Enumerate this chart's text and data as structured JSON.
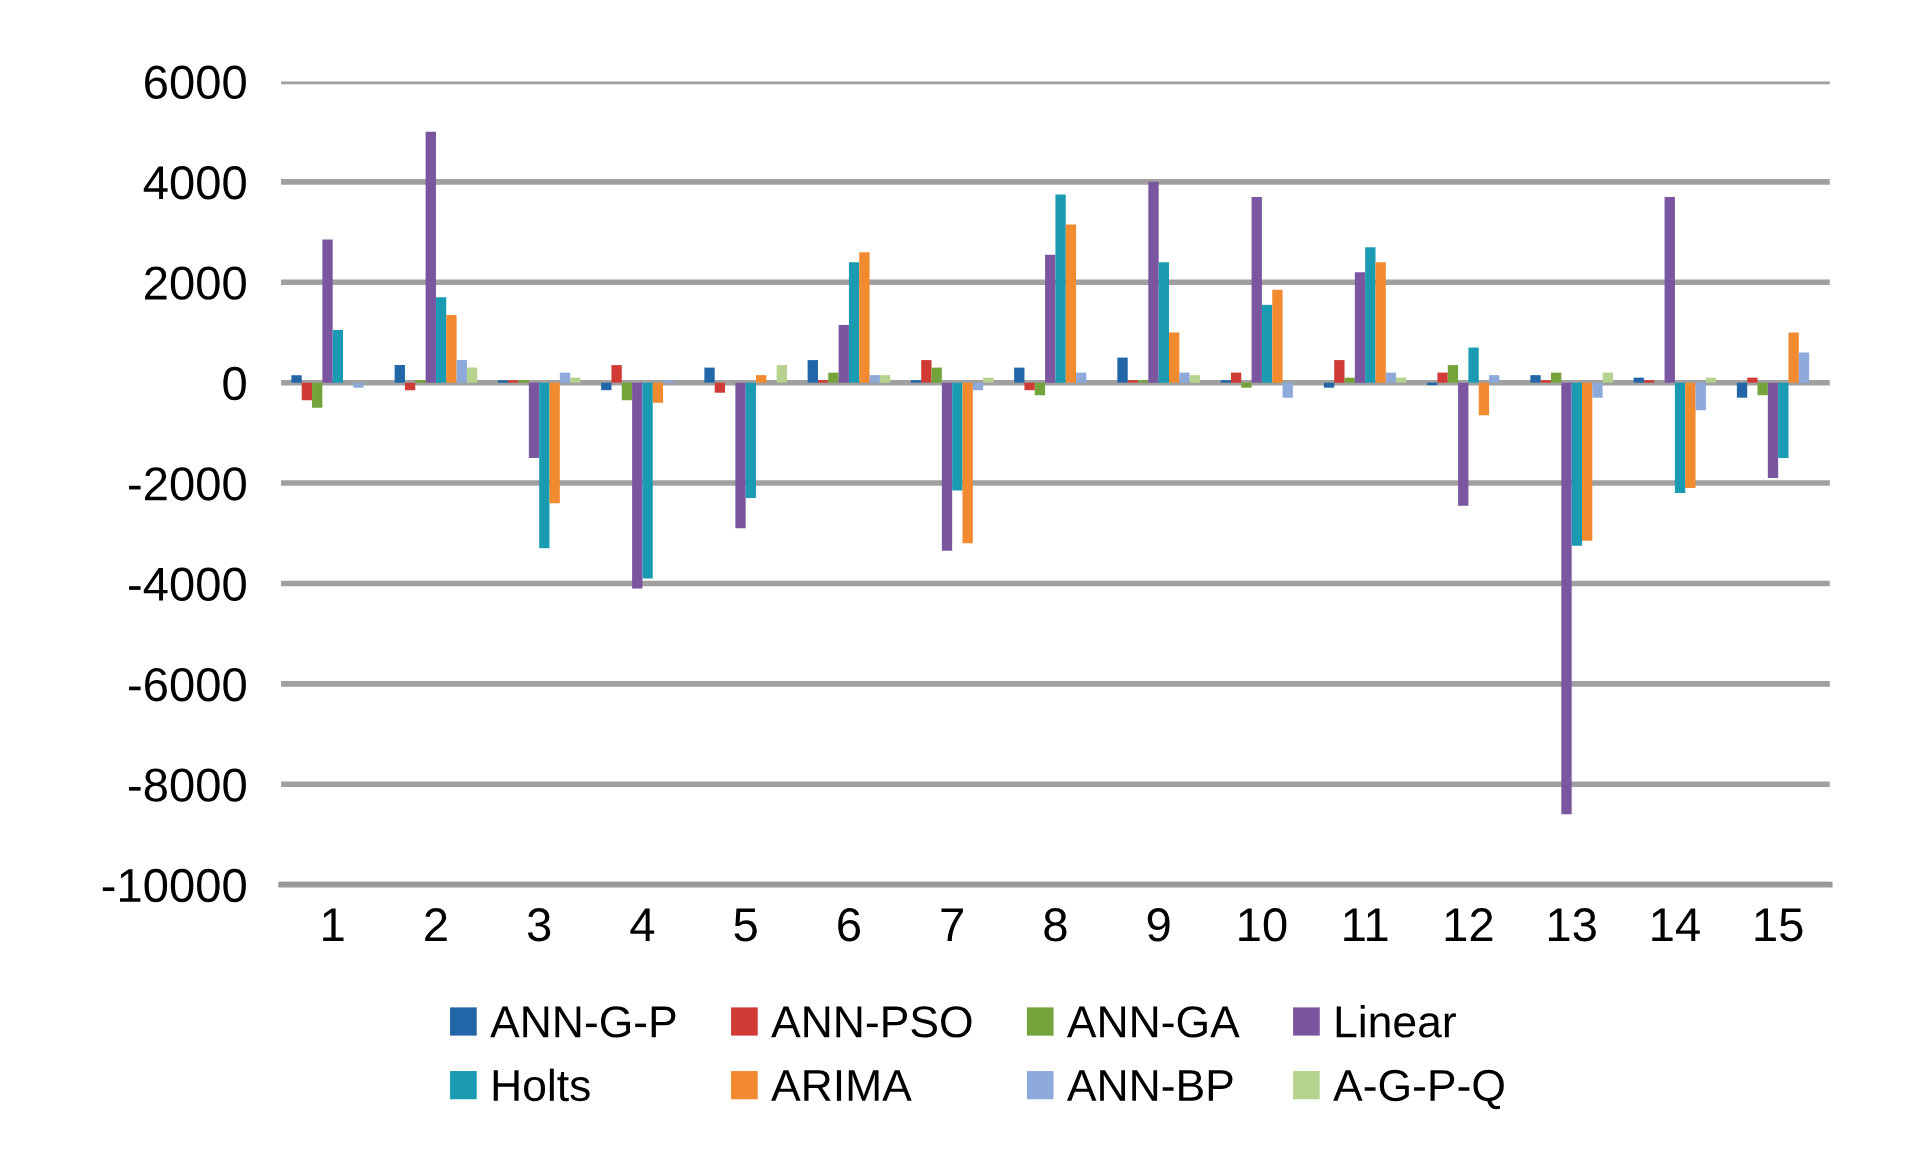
{
  "chart_data": {
    "type": "bar",
    "categories": [
      "1",
      "2",
      "3",
      "4",
      "5",
      "6",
      "7",
      "8",
      "9",
      "10",
      "11",
      "12",
      "13",
      "14",
      "15"
    ],
    "series": [
      {
        "name": "ANN-G-P",
        "color": "#2266a8",
        "values": [
          150,
          350,
          50,
          -150,
          300,
          450,
          50,
          300,
          500,
          50,
          -100,
          -50,
          150,
          100,
          -300
        ]
      },
      {
        "name": "ANN-PSO",
        "color": "#d03b35",
        "values": [
          -350,
          -150,
          50,
          350,
          -200,
          50,
          450,
          -150,
          50,
          200,
          450,
          200,
          50,
          50,
          100
        ]
      },
      {
        "name": "ANN-GA",
        "color": "#74a33c",
        "values": [
          -500,
          50,
          50,
          -350,
          0,
          200,
          300,
          -250,
          50,
          -100,
          100,
          350,
          200,
          0,
          -250
        ]
      },
      {
        "name": "Linear",
        "color": "#7a55a0",
        "values": [
          2850,
          5000,
          -1500,
          -4100,
          -2900,
          1150,
          -3350,
          2550,
          4000,
          3700,
          2200,
          -2450,
          -8600,
          3700,
          -1900
        ]
      },
      {
        "name": "Holts",
        "color": "#1a9bb2",
        "values": [
          1050,
          1700,
          -3300,
          -3900,
          -2300,
          2400,
          -2150,
          3750,
          2400,
          1550,
          2700,
          700,
          -3250,
          -2200,
          -1500
        ]
      },
      {
        "name": "ARIMA",
        "color": "#f28a30",
        "values": [
          0,
          1350,
          -2400,
          -400,
          150,
          2600,
          -3200,
          3150,
          1000,
          1850,
          2400,
          -650,
          -3150,
          -2100,
          1000
        ]
      },
      {
        "name": "ANN-BP",
        "color": "#8eaadb",
        "values": [
          -100,
          450,
          200,
          50,
          0,
          150,
          -150,
          200,
          200,
          -300,
          200,
          150,
          -300,
          -550,
          600
        ]
      },
      {
        "name": "A-G-P-Q",
        "color": "#b5d38f",
        "values": [
          0,
          300,
          100,
          0,
          350,
          150,
          100,
          0,
          150,
          0,
          100,
          0,
          200,
          100,
          0
        ]
      }
    ],
    "ylim": [
      -10000,
      6000
    ],
    "yticks": [
      -10000,
      -8000,
      -6000,
      -4000,
      -2000,
      0,
      2000,
      4000,
      6000
    ],
    "grid": "y",
    "legend": "bottom"
  }
}
